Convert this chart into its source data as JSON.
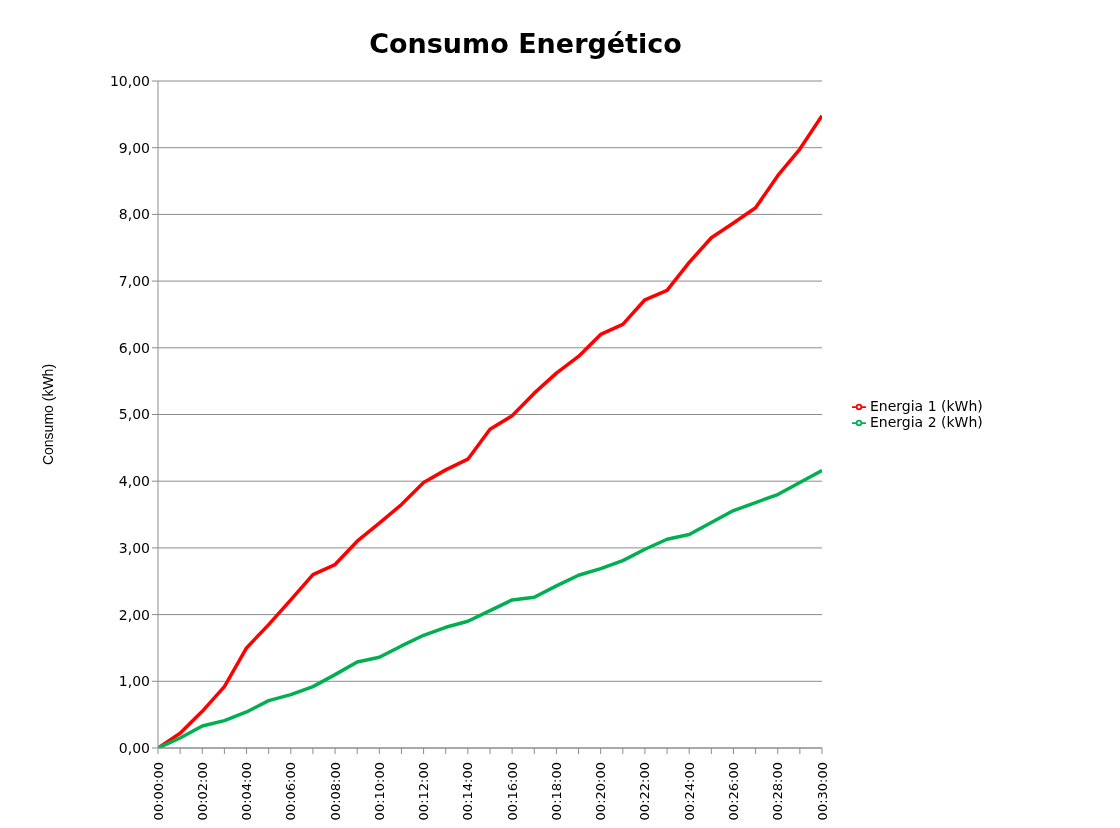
{
  "chart_data": {
    "type": "line",
    "title": "Consumo Energético",
    "ylabel": "Consumo (kWh)",
    "categories": [
      "00:00:00",
      null,
      "00:02:00",
      null,
      "00:04:00",
      null,
      "00:06:00",
      null,
      "00:08:00",
      null,
      "00:10:00",
      null,
      "00:12:00",
      null,
      "00:14:00",
      null,
      "00:16:00",
      null,
      "00:18:00",
      null,
      "00:20:00",
      null,
      "00:22:00",
      null,
      "00:24:00",
      null,
      "00:26:00",
      null,
      "00:28:00",
      null,
      "00:30:00"
    ],
    "series": [
      {
        "name": "Energia 1 (kWh)",
        "color": "#ff0000",
        "values": [
          0,
          0.22,
          0.55,
          0.92,
          1.5,
          1.85,
          2.22,
          2.6,
          2.75,
          3.1,
          3.37,
          3.65,
          3.98,
          4.17,
          4.33,
          4.78,
          4.98,
          5.32,
          5.62,
          5.87,
          6.2,
          6.35,
          6.72,
          6.86,
          7.28,
          7.65,
          7.87,
          8.1,
          8.58,
          8.98,
          9.48
        ]
      },
      {
        "name": "Energia 2 (kWh)",
        "color": "#00b050",
        "values": [
          0,
          0.15,
          0.33,
          0.41,
          0.54,
          0.71,
          0.8,
          0.92,
          1.1,
          1.29,
          1.36,
          1.53,
          1.69,
          1.81,
          1.9,
          2.06,
          2.22,
          2.26,
          2.43,
          2.59,
          2.69,
          2.81,
          2.98,
          3.13,
          3.2,
          3.38,
          3.56,
          3.68,
          3.8,
          3.98,
          4.16
        ]
      }
    ],
    "ylim": [
      0,
      10
    ],
    "yticks": [
      {
        "value": 0,
        "label": "0,00"
      },
      {
        "value": 1,
        "label": "1,00"
      },
      {
        "value": 2,
        "label": "2,00"
      },
      {
        "value": 3,
        "label": "3,00"
      },
      {
        "value": 4,
        "label": "4,00"
      },
      {
        "value": 5,
        "label": "5,00"
      },
      {
        "value": 6,
        "label": "6,00"
      },
      {
        "value": 7,
        "label": "7,00"
      },
      {
        "value": 8,
        "label": "8,00"
      },
      {
        "value": 9,
        "label": "9,00"
      },
      {
        "value": 10,
        "label": "10,00"
      }
    ],
    "grid": "y",
    "legend": "right",
    "marker": "none",
    "line_style": "solid"
  }
}
